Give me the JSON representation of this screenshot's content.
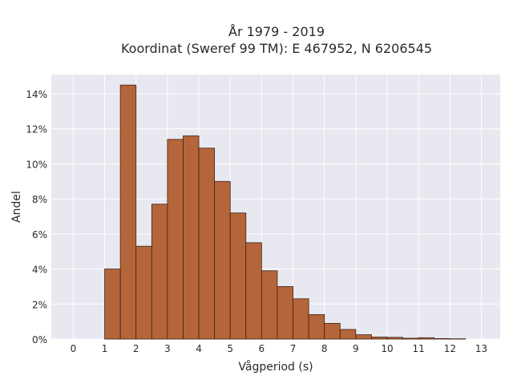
{
  "chart_data": {
    "type": "bar",
    "title_line1": "År 1979 - 2019",
    "title_line2": "Koordinat (Sweref 99 TM): E 467952, N 6206545",
    "xlabel": "Vågperiod (s)",
    "ylabel": "Andel",
    "xlim": [
      -0.7,
      13.6
    ],
    "ylim": [
      0,
      15.1
    ],
    "xticks": [
      "0",
      "1",
      "2",
      "3",
      "4",
      "5",
      "6",
      "7",
      "8",
      "9",
      "10",
      "11",
      "12",
      "13"
    ],
    "yticks": [
      "0%",
      "2%",
      "4%",
      "6%",
      "8%",
      "10%",
      "12%",
      "14%"
    ],
    "ytick_values": [
      0,
      2,
      4,
      6,
      8,
      10,
      12,
      14
    ],
    "grid": true,
    "bin_width": 0.5,
    "bins": [
      {
        "x0": 1.0,
        "value": 4.0
      },
      {
        "x0": 1.5,
        "value": 14.5
      },
      {
        "x0": 2.0,
        "value": 5.3
      },
      {
        "x0": 2.5,
        "value": 7.7
      },
      {
        "x0": 3.0,
        "value": 11.4
      },
      {
        "x0": 3.5,
        "value": 11.6
      },
      {
        "x0": 4.0,
        "value": 10.9
      },
      {
        "x0": 4.5,
        "value": 9.0
      },
      {
        "x0": 5.0,
        "value": 7.2
      },
      {
        "x0": 5.5,
        "value": 5.5
      },
      {
        "x0": 6.0,
        "value": 3.9
      },
      {
        "x0": 6.5,
        "value": 3.0
      },
      {
        "x0": 7.0,
        "value": 2.3
      },
      {
        "x0": 7.5,
        "value": 1.4
      },
      {
        "x0": 8.0,
        "value": 0.9
      },
      {
        "x0": 8.5,
        "value": 0.55
      },
      {
        "x0": 9.0,
        "value": 0.25
      },
      {
        "x0": 9.5,
        "value": 0.12
      },
      {
        "x0": 10.0,
        "value": 0.1
      },
      {
        "x0": 10.5,
        "value": 0.05
      },
      {
        "x0": 11.0,
        "value": 0.08
      },
      {
        "x0": 11.5,
        "value": 0.03
      },
      {
        "x0": 12.0,
        "value": 0.02
      }
    ],
    "colors": {
      "bar_fill": "#b5653a",
      "bar_stroke": "#3d2316",
      "plot_bg": "#e8e8f0",
      "grid": "#ffffff"
    }
  }
}
